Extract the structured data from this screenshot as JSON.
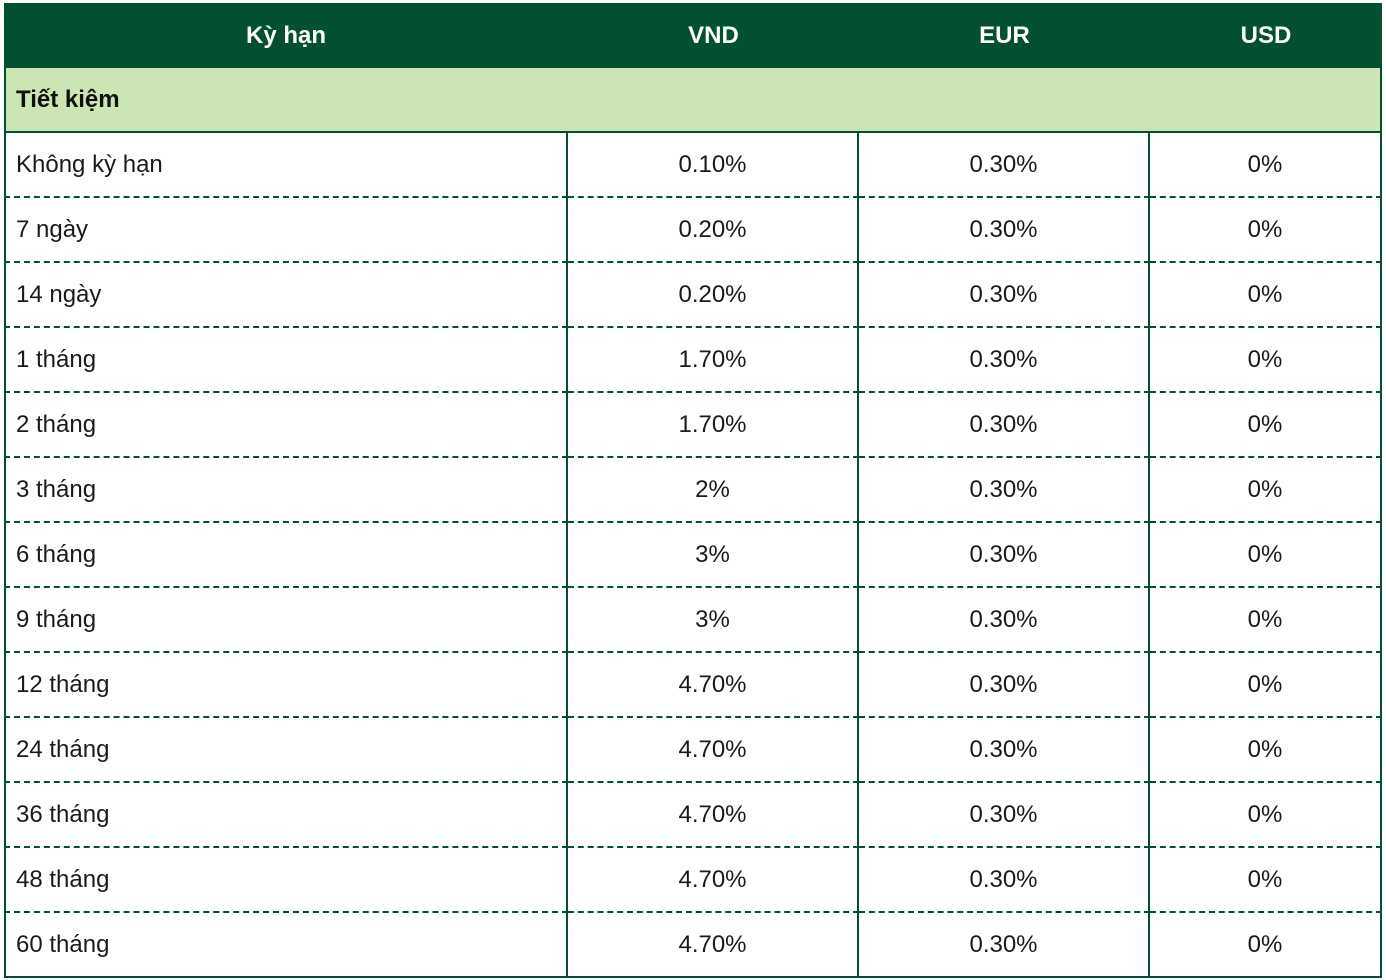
{
  "table": {
    "header": [
      "Kỳ hạn",
      "VND",
      "EUR",
      "USD"
    ],
    "section": "Tiết kiệm",
    "rows": [
      [
        "Không kỳ hạn",
        "0.10%",
        "0.30%",
        "0%"
      ],
      [
        "7 ngày",
        "0.20%",
        "0.30%",
        "0%"
      ],
      [
        "14 ngày",
        "0.20%",
        "0.30%",
        "0%"
      ],
      [
        "1 tháng",
        "1.70%",
        "0.30%",
        "0%"
      ],
      [
        "2 tháng",
        "1.70%",
        "0.30%",
        "0%"
      ],
      [
        "3 tháng",
        "2%",
        "0.30%",
        "0%"
      ],
      [
        "6 tháng",
        "3%",
        "0.30%",
        "0%"
      ],
      [
        "9 tháng",
        "3%",
        "0.30%",
        "0%"
      ],
      [
        "12 tháng",
        "4.70%",
        "0.30%",
        "0%"
      ],
      [
        "24 tháng",
        "4.70%",
        "0.30%",
        "0%"
      ],
      [
        "36 tháng",
        "4.70%",
        "0.30%",
        "0%"
      ],
      [
        "48 tháng",
        "4.70%",
        "0.30%",
        "0%"
      ],
      [
        "60 tháng",
        "4.70%",
        "0.30%",
        "0%"
      ]
    ]
  }
}
